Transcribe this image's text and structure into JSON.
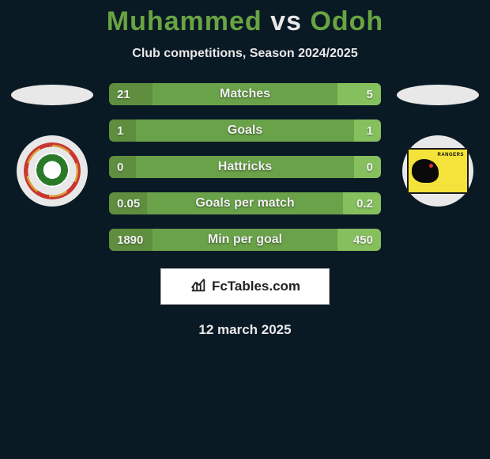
{
  "title": {
    "left": "Muhammed",
    "vs": "vs",
    "right": "Odoh",
    "left_color": "#68a542",
    "vs_color": "#e8e8e8",
    "right_color": "#68a542",
    "fontsize": 34
  },
  "subtitle": "Club competitions, Season 2024/2025",
  "subtitle_color": "#e8e8e8",
  "subtitle_fontsize": 16,
  "colors": {
    "background": "#0a1a25",
    "seg_left": "#5f8f3e",
    "seg_mid": "#6aa249",
    "seg_right": "#86c05e",
    "text_on_bar": "#f0f0f0",
    "ellipse": "#e8e8e8",
    "club_circle": "#e8e8e8"
  },
  "bars": {
    "total_width": 344,
    "height": 28,
    "radius": 6,
    "gap": 18,
    "items": [
      {
        "label": "Matches",
        "left_val": "21",
        "right_val": "5",
        "left_pct": 16,
        "right_pct": 16
      },
      {
        "label": "Goals",
        "left_val": "1",
        "right_val": "1",
        "left_pct": 10,
        "right_pct": 10
      },
      {
        "label": "Hattricks",
        "left_val": "0",
        "right_val": "0",
        "left_pct": 10,
        "right_pct": 10
      },
      {
        "label": "Goals per match",
        "left_val": "0.05",
        "right_val": "0.2",
        "left_pct": 14,
        "right_pct": 14
      },
      {
        "label": "Min per goal",
        "left_val": "1890",
        "right_val": "450",
        "left_pct": 16,
        "right_pct": 16
      }
    ]
  },
  "footer": {
    "brand": "FcTables.com",
    "icon": "bar-chart-icon",
    "bg": "#ffffff",
    "border": "#b8b8b8",
    "fontsize": 17
  },
  "date": "12 march 2025",
  "date_fontsize": 17,
  "clubs": {
    "left": {
      "name": "club-left-badge"
    },
    "right": {
      "name": "club-right-badge",
      "text": "RANGERS"
    }
  }
}
